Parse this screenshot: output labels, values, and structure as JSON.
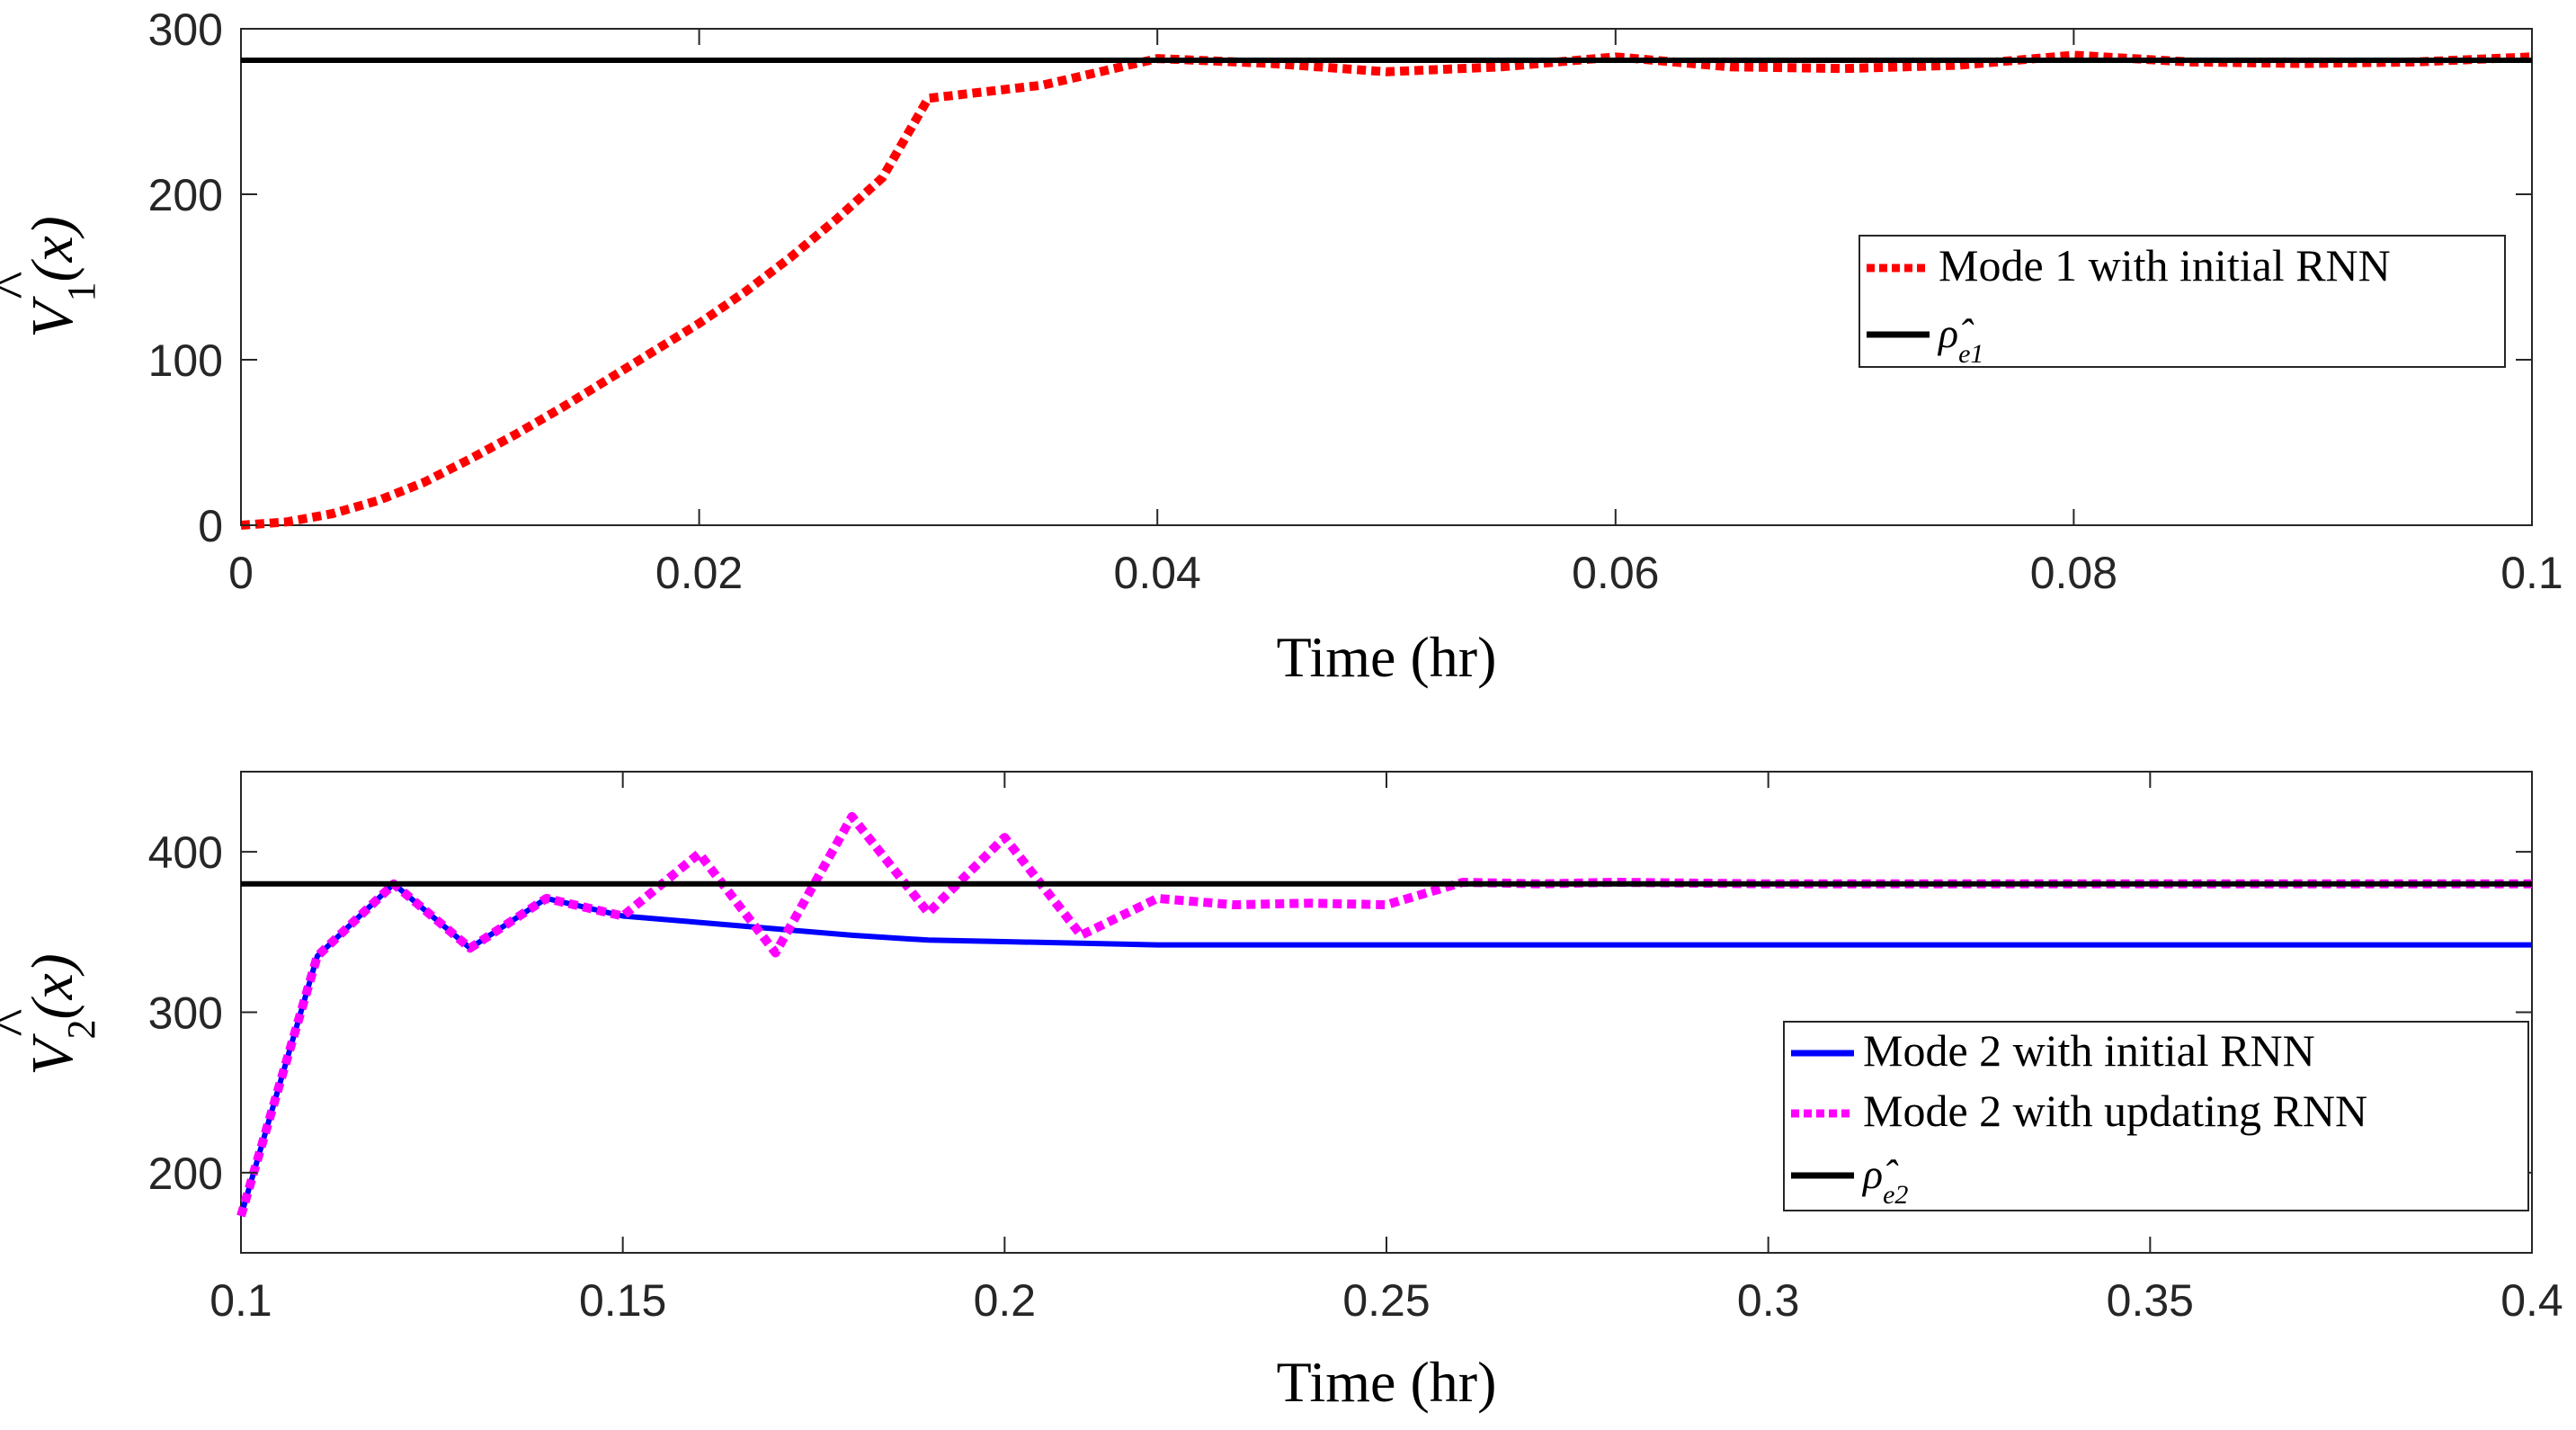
{
  "chart_data": [
    {
      "type": "line",
      "xlabel": "Time (hr)",
      "ylabel": {
        "base": "V",
        "sub": "1",
        "arg": "(x)"
      },
      "xlim": [
        0,
        0.1
      ],
      "ylim": [
        0,
        300
      ],
      "xticks": [
        0,
        0.02,
        0.04,
        0.06,
        0.08,
        0.1
      ],
      "xtick_labels": [
        "0",
        "0.02",
        "0.04",
        "0.06",
        "0.08",
        "0.1"
      ],
      "yticks": [
        0,
        100,
        200,
        300
      ],
      "ytick_labels": [
        "0",
        "100",
        "200",
        "300"
      ],
      "legend_position": "right",
      "series": [
        {
          "name": "Mode 1 with initial RNN",
          "color": "#ff0000",
          "style": "dotted",
          "x": [
            0,
            0.002,
            0.004,
            0.006,
            0.008,
            0.01,
            0.012,
            0.014,
            0.016,
            0.018,
            0.02,
            0.022,
            0.024,
            0.026,
            0.028,
            0.03,
            0.035,
            0.04,
            0.045,
            0.05,
            0.055,
            0.06,
            0.065,
            0.07,
            0.075,
            0.08,
            0.085,
            0.09,
            0.095,
            0.1
          ],
          "values": [
            0,
            2,
            7,
            15,
            26,
            40,
            55,
            71,
            88,
            105,
            122,
            141,
            162,
            185,
            210,
            258,
            266,
            282,
            279,
            274,
            277,
            283,
            277,
            276,
            278,
            284,
            280,
            279,
            280,
            283
          ]
        },
        {
          "name": "ρ̂",
          "subscript": "e1",
          "color": "#000000",
          "style": "solid",
          "x": [
            0,
            0.1
          ],
          "values": [
            281,
            281
          ]
        }
      ]
    },
    {
      "type": "line",
      "xlabel": "Time (hr)",
      "ylabel": {
        "base": "V",
        "sub": "2",
        "arg": "(x)"
      },
      "xlim": [
        0.1,
        0.4
      ],
      "ylim": [
        150,
        450
      ],
      "xticks": [
        0.1,
        0.15,
        0.2,
        0.25,
        0.3,
        0.35,
        0.4
      ],
      "xtick_labels": [
        "0.1",
        "0.15",
        "0.2",
        "0.25",
        "0.3",
        "0.35",
        "0.4"
      ],
      "yticks": [
        200,
        300,
        400
      ],
      "ytick_labels": [
        "200",
        "300",
        "400"
      ],
      "legend_position": "bottom-right",
      "series": [
        {
          "name": "Mode 2 with initial RNN",
          "color": "#0000ff",
          "style": "solid",
          "x": [
            0.1,
            0.11,
            0.12,
            0.13,
            0.14,
            0.15,
            0.16,
            0.17,
            0.18,
            0.19,
            0.2,
            0.21,
            0.22,
            0.25,
            0.3,
            0.35,
            0.4
          ],
          "values": [
            173,
            335,
            380,
            340,
            371,
            360,
            356,
            352,
            348,
            345,
            344,
            343,
            342,
            342,
            342,
            342,
            342
          ]
        },
        {
          "name": "Mode 2 with updating RNN",
          "color": "#ff00ff",
          "style": "dotted",
          "x": [
            0.1,
            0.11,
            0.12,
            0.13,
            0.14,
            0.15,
            0.16,
            0.17,
            0.18,
            0.19,
            0.2,
            0.21,
            0.22,
            0.23,
            0.24,
            0.25,
            0.26,
            0.27,
            0.28,
            0.3,
            0.35,
            0.4
          ],
          "values": [
            173,
            335,
            380,
            340,
            371,
            360,
            399,
            337,
            422,
            362,
            409,
            348,
            371,
            367,
            368,
            367,
            381,
            380,
            381,
            380,
            380,
            380
          ]
        },
        {
          "name": "ρ̂",
          "subscript": "e2",
          "color": "#000000",
          "style": "solid",
          "x": [
            0.1,
            0.4
          ],
          "values": [
            380,
            380
          ]
        }
      ]
    }
  ]
}
